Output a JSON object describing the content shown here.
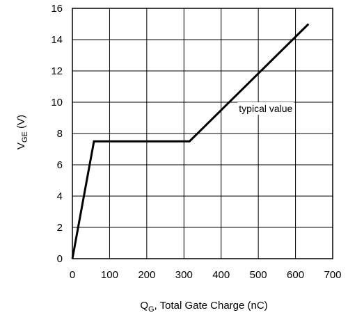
{
  "chart_data": {
    "type": "line",
    "title": "",
    "xlabel": {
      "main": "Q",
      "sub": "G",
      "rest": ", Total Gate Charge (nC)"
    },
    "ylabel": {
      "main": "V",
      "sub": "GE",
      "rest": " (V)"
    },
    "xlim": [
      0,
      700
    ],
    "ylim": [
      0,
      16
    ],
    "xticks": [
      0,
      100,
      200,
      300,
      400,
      500,
      600,
      700
    ],
    "yticks": [
      0,
      2,
      4,
      6,
      8,
      10,
      12,
      14,
      16
    ],
    "grid": true,
    "series": [
      {
        "x": [
          0,
          58,
          315,
          635
        ],
        "y": [
          0,
          7.5,
          7.5,
          15
        ]
      }
    ],
    "annotations": [
      {
        "text": "typical value",
        "x": 520,
        "y": 9.6
      }
    ],
    "colors": {
      "line": "#000000",
      "grid": "#000000",
      "frame": "#000000"
    }
  }
}
